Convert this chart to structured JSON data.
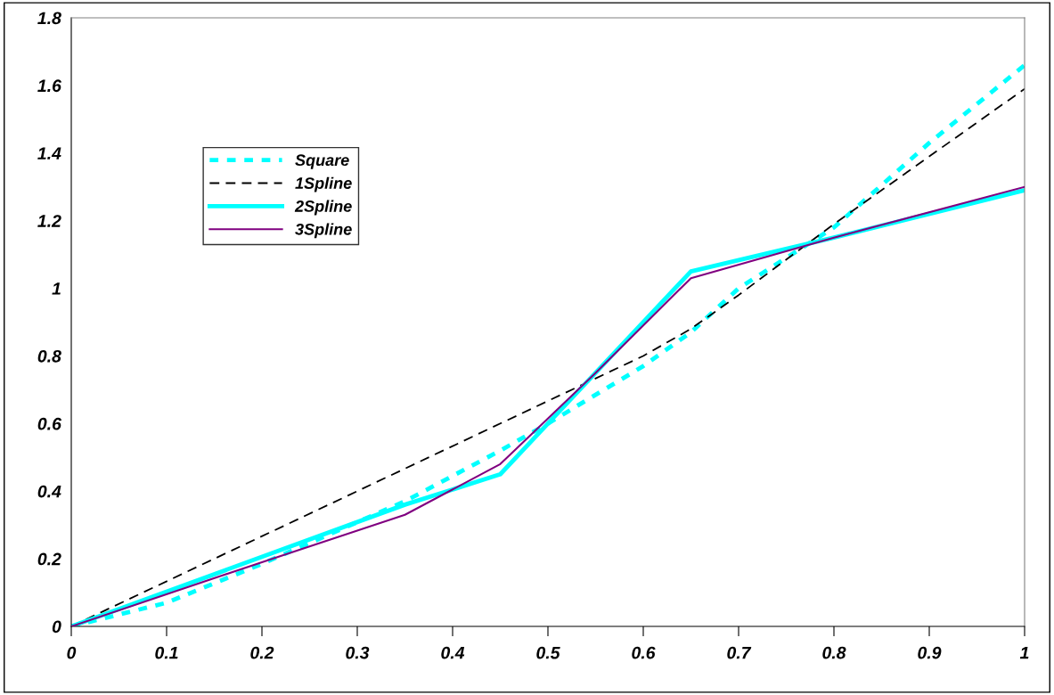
{
  "chart_data": {
    "type": "line",
    "xlim": [
      0,
      1
    ],
    "ylim": [
      0,
      1.8
    ],
    "xticks": [
      0,
      0.1,
      0.2,
      0.3,
      0.4,
      0.5,
      0.6,
      0.7,
      0.8,
      0.9,
      1
    ],
    "yticks": [
      0,
      0.2,
      0.4,
      0.6,
      0.8,
      1,
      1.2,
      1.4,
      1.6,
      1.8
    ],
    "grid": false,
    "legend": "top left",
    "marker": "none",
    "series": [
      {
        "name": "Square",
        "color": "#00ffff",
        "line_style": "dotted",
        "x": [
          0,
          0.1,
          0.2,
          0.35,
          0.45,
          0.5,
          0.6,
          0.65,
          0.7,
          0.8,
          0.9,
          1
        ],
        "values": [
          0,
          0.07,
          0.185,
          0.37,
          0.52,
          0.6,
          0.77,
          0.87,
          1.0,
          1.18,
          1.43,
          1.66
        ]
      },
      {
        "name": "1Spline",
        "color": "#000000",
        "line_style": "dashed",
        "x": [
          0,
          0.6,
          0.65,
          0.7,
          0.8,
          1
        ],
        "values": [
          0,
          0.8,
          0.88,
          0.98,
          1.19,
          1.59
        ]
      },
      {
        "name": "2Spline",
        "color": "#00ffff",
        "line_style": "solid",
        "x": [
          0,
          0.35,
          0.45,
          0.55,
          0.65,
          0.8,
          1
        ],
        "values": [
          0,
          0.36,
          0.45,
          0.75,
          1.05,
          1.15,
          1.29
        ]
      },
      {
        "name": "3Spline",
        "color": "#800080",
        "line_style": "solid",
        "x": [
          0,
          0.2,
          0.35,
          0.45,
          0.55,
          0.65,
          0.8,
          1
        ],
        "values": [
          0,
          0.19,
          0.33,
          0.48,
          0.75,
          1.03,
          1.15,
          1.3
        ]
      }
    ]
  }
}
